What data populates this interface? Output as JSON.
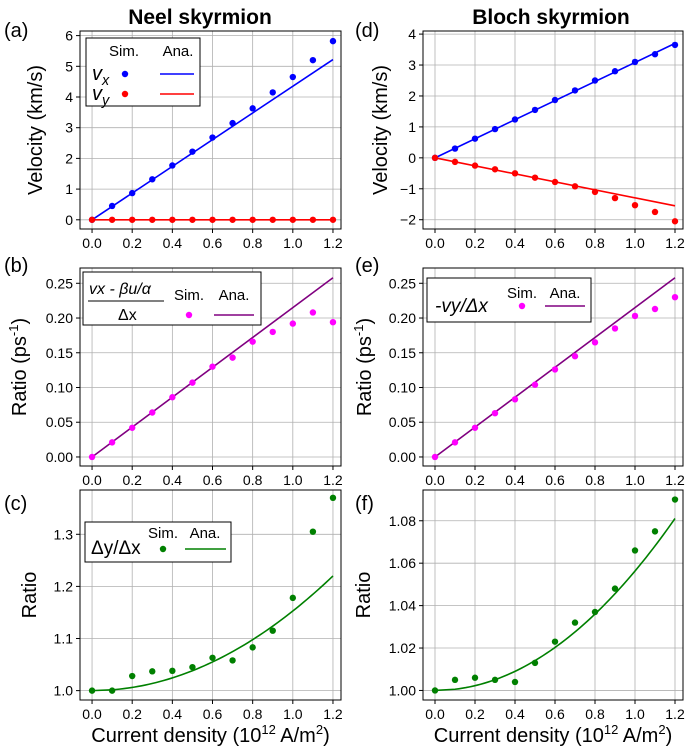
{
  "figure": {
    "columns": [
      {
        "title": "Neel skyrmion"
      },
      {
        "title": "Bloch skyrmion"
      }
    ]
  },
  "legend_headers": {
    "sim": "Sim.",
    "ana": "Ana."
  },
  "chart_data": [
    {
      "id": "a",
      "panel_label": "(a)",
      "type": "scatter+line",
      "ylabel": "Velocity (km/s)",
      "xlabel": "",
      "xlim": [
        -0.06,
        1.24
      ],
      "ylim": [
        -0.3,
        6.15
      ],
      "xticks": [
        0.0,
        0.2,
        0.4,
        0.6,
        0.8,
        1.0,
        1.2
      ],
      "xtick_labels": [
        "0.0",
        "0.2",
        "0.4",
        "0.6",
        "0.8",
        "1.0",
        "1.2"
      ],
      "yticks": [
        0,
        1,
        2,
        3,
        4,
        5,
        6
      ],
      "ytick_labels": [
        "0",
        "1",
        "2",
        "3",
        "4",
        "5",
        "6"
      ],
      "series": [
        {
          "name": "v_x",
          "label_main": "v",
          "label_sub": "x",
          "color": "#0000ff",
          "x": [
            0,
            0.1,
            0.2,
            0.3,
            0.4,
            0.5,
            0.6,
            0.7,
            0.8,
            0.9,
            1.0,
            1.1,
            1.2
          ],
          "sim": [
            0,
            0.45,
            0.87,
            1.32,
            1.77,
            2.22,
            2.68,
            3.15,
            3.63,
            4.15,
            4.65,
            5.2,
            5.82
          ],
          "ana": {
            "x": [
              0,
              1.2
            ],
            "y": [
              0,
              5.22
            ]
          }
        },
        {
          "name": "v_y",
          "label_main": "v",
          "label_sub": "y",
          "color": "#ff0000",
          "x": [
            0,
            0.1,
            0.2,
            0.3,
            0.4,
            0.5,
            0.6,
            0.7,
            0.8,
            0.9,
            1.0,
            1.1,
            1.2
          ],
          "sim": [
            0,
            0,
            0,
            0,
            0,
            0,
            0,
            0,
            0,
            0,
            0,
            0,
            0
          ],
          "ana": {
            "x": [
              0,
              1.2
            ],
            "y": [
              0,
              0
            ]
          }
        }
      ]
    },
    {
      "id": "b",
      "panel_label": "(b)",
      "type": "scatter+line",
      "ylabel": "Ratio (ps",
      "ylabel_sup": "-1",
      "ylabel_end": ")",
      "xlabel": "",
      "xlim": [
        -0.06,
        1.24
      ],
      "ylim": [
        -0.013,
        0.272
      ],
      "xticks": [
        0.0,
        0.2,
        0.4,
        0.6,
        0.8,
        1.0,
        1.2
      ],
      "xtick_labels": [
        "0.0",
        "0.2",
        "0.4",
        "0.6",
        "0.8",
        "1.0",
        "1.2"
      ],
      "yticks": [
        0,
        0.05,
        0.1,
        0.15,
        0.2,
        0.25
      ],
      "ytick_labels": [
        "0.00",
        "0.05",
        "0.10",
        "0.15",
        "0.20",
        "0.25"
      ],
      "legend_formula": {
        "numerator": "vx - βu/α",
        "denominator": "Δx"
      },
      "series": [
        {
          "name": "ratio",
          "color": "#ff00ff",
          "line_color": "#800080",
          "x": [
            0,
            0.1,
            0.2,
            0.3,
            0.4,
            0.5,
            0.6,
            0.7,
            0.8,
            0.9,
            1.0,
            1.1,
            1.2
          ],
          "sim": [
            0,
            0.021,
            0.042,
            0.064,
            0.086,
            0.107,
            0.13,
            0.143,
            0.166,
            0.18,
            0.192,
            0.208,
            0.194
          ],
          "ana": {
            "x": [
              0,
              1.2
            ],
            "y": [
              0,
              0.258
            ]
          }
        }
      ]
    },
    {
      "id": "c",
      "panel_label": "(c)",
      "type": "scatter+line",
      "ylabel": "Ratio",
      "xlabel": "Current density (10",
      "xlabel_sup": "12",
      "xlabel_end": " A/m",
      "xlabel_sup2": "2",
      "xlabel_close": ")",
      "xlim": [
        -0.06,
        1.24
      ],
      "ylim": [
        0.982,
        1.385
      ],
      "xticks": [
        0.0,
        0.2,
        0.4,
        0.6,
        0.8,
        1.0,
        1.2
      ],
      "xtick_labels": [
        "0.0",
        "0.2",
        "0.4",
        "0.6",
        "0.8",
        "1.0",
        "1.2"
      ],
      "yticks": [
        1.0,
        1.1,
        1.2,
        1.3
      ],
      "ytick_labels": [
        "1.0",
        "1.1",
        "1.2",
        "1.3"
      ],
      "legend_formula": {
        "text": "Δy/Δx"
      },
      "series": [
        {
          "name": "ratio",
          "color": "#008000",
          "x": [
            0,
            0.1,
            0.2,
            0.3,
            0.4,
            0.5,
            0.6,
            0.7,
            0.8,
            0.9,
            1.0,
            1.1,
            1.2
          ],
          "sim": [
            1.0,
            1.0,
            1.028,
            1.037,
            1.038,
            1.045,
            1.063,
            1.058,
            1.083,
            1.115,
            1.178,
            1.305,
            1.37
          ],
          "ana": {
            "type": "quadratic",
            "x0": 0,
            "y0": 1.0,
            "coef": 0.1528
          }
        }
      ]
    },
    {
      "id": "d",
      "panel_label": "(d)",
      "type": "scatter+line",
      "ylabel": "Velocity (km/s)",
      "xlabel": "",
      "xlim": [
        -0.06,
        1.24
      ],
      "ylim": [
        -2.3,
        4.1
      ],
      "xticks": [
        0.0,
        0.2,
        0.4,
        0.6,
        0.8,
        1.0,
        1.2
      ],
      "xtick_labels": [
        "0.0",
        "0.2",
        "0.4",
        "0.6",
        "0.8",
        "1.0",
        "1.2"
      ],
      "yticks": [
        -2,
        -1,
        0,
        1,
        2,
        3,
        4
      ],
      "ytick_labels": [
        "−2",
        "−1",
        "0",
        "1",
        "2",
        "3",
        "4"
      ],
      "series": [
        {
          "name": "v_x",
          "color": "#0000ff",
          "x": [
            0,
            0.1,
            0.2,
            0.3,
            0.4,
            0.5,
            0.6,
            0.7,
            0.8,
            0.9,
            1.0,
            1.1,
            1.2
          ],
          "sim": [
            0,
            0.3,
            0.62,
            0.93,
            1.24,
            1.55,
            1.87,
            2.18,
            2.5,
            2.8,
            3.1,
            3.35,
            3.65
          ],
          "ana": {
            "x": [
              0,
              1.2
            ],
            "y": [
              0,
              3.7
            ]
          }
        },
        {
          "name": "v_y",
          "color": "#ff0000",
          "x": [
            0,
            0.1,
            0.2,
            0.3,
            0.4,
            0.5,
            0.6,
            0.7,
            0.8,
            0.9,
            1.0,
            1.1,
            1.2
          ],
          "sim": [
            0,
            -0.13,
            -0.25,
            -0.37,
            -0.5,
            -0.64,
            -0.78,
            -0.92,
            -1.1,
            -1.3,
            -1.53,
            -1.75,
            -2.05
          ],
          "ana": {
            "x": [
              0,
              1.2
            ],
            "y": [
              0,
              -1.55
            ]
          }
        }
      ]
    },
    {
      "id": "e",
      "panel_label": "(e)",
      "type": "scatter+line",
      "ylabel": "Ratio (ps",
      "ylabel_sup": "-1",
      "ylabel_end": ")",
      "xlabel": "",
      "xlim": [
        -0.06,
        1.24
      ],
      "ylim": [
        -0.013,
        0.272
      ],
      "xticks": [
        0.0,
        0.2,
        0.4,
        0.6,
        0.8,
        1.0,
        1.2
      ],
      "xtick_labels": [
        "0.0",
        "0.2",
        "0.4",
        "0.6",
        "0.8",
        "1.0",
        "1.2"
      ],
      "yticks": [
        0,
        0.05,
        0.1,
        0.15,
        0.2,
        0.25
      ],
      "ytick_labels": [
        "0.00",
        "0.05",
        "0.10",
        "0.15",
        "0.20",
        "0.25"
      ],
      "legend_formula": {
        "text": "-vy/Δx"
      },
      "series": [
        {
          "name": "ratio",
          "color": "#ff00ff",
          "line_color": "#800080",
          "x": [
            0,
            0.1,
            0.2,
            0.3,
            0.4,
            0.5,
            0.6,
            0.7,
            0.8,
            0.9,
            1.0,
            1.1,
            1.2
          ],
          "sim": [
            0,
            0.021,
            0.042,
            0.063,
            0.083,
            0.104,
            0.126,
            0.145,
            0.165,
            0.185,
            0.203,
            0.213,
            0.23
          ],
          "ana": {
            "x": [
              0,
              1.2
            ],
            "y": [
              0,
              0.258
            ]
          }
        }
      ]
    },
    {
      "id": "f",
      "panel_label": "(f)",
      "type": "scatter+line",
      "ylabel": "Ratio",
      "xlabel": "Current density (10",
      "xlabel_sup": "12",
      "xlabel_end": " A/m",
      "xlabel_sup2": "2",
      "xlabel_close": ")",
      "xlim": [
        -0.06,
        1.24
      ],
      "ylim": [
        0.9955,
        1.0945
      ],
      "xticks": [
        0.0,
        0.2,
        0.4,
        0.6,
        0.8,
        1.0,
        1.2
      ],
      "xtick_labels": [
        "0.0",
        "0.2",
        "0.4",
        "0.6",
        "0.8",
        "1.0",
        "1.2"
      ],
      "yticks": [
        1.0,
        1.02,
        1.04,
        1.06,
        1.08
      ],
      "ytick_labels": [
        "1.00",
        "1.02",
        "1.04",
        "1.06",
        "1.08"
      ],
      "series": [
        {
          "name": "ratio",
          "color": "#008000",
          "x": [
            0,
            0.1,
            0.2,
            0.3,
            0.4,
            0.5,
            0.6,
            0.7,
            0.8,
            0.9,
            1.0,
            1.1,
            1.2
          ],
          "sim": [
            1.0,
            1.005,
            1.006,
            1.005,
            1.004,
            1.013,
            1.023,
            1.032,
            1.037,
            1.048,
            1.066,
            1.075,
            1.09
          ],
          "ana": {
            "type": "quadratic",
            "x0": 0,
            "y0": 1.0,
            "coef": 0.0563
          }
        }
      ]
    }
  ]
}
